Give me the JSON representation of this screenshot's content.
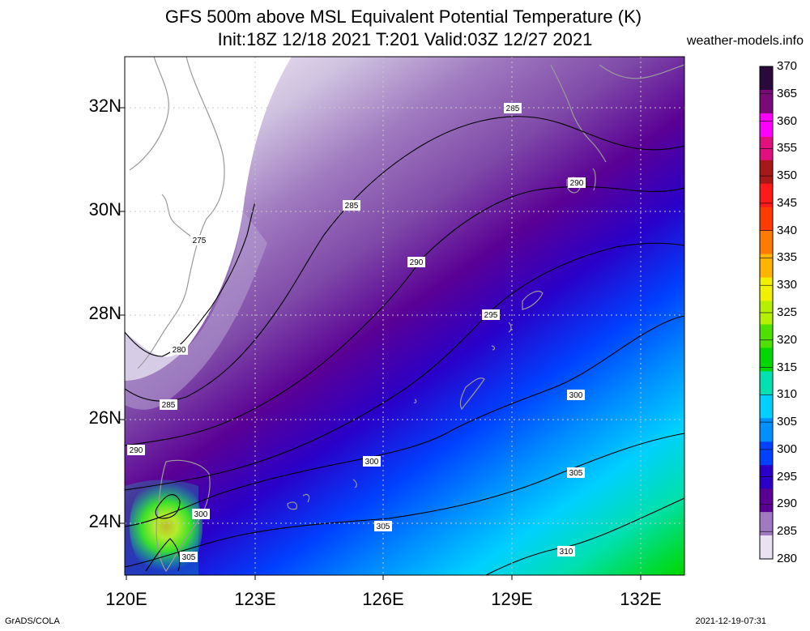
{
  "title_line1": "GFS 500m above MSL Equivalent Potential Temperature (K)",
  "title_line2": "Init:18Z 12/18 2021 T:201 Valid:03Z 12/27 2021",
  "site": "weather-models.info",
  "lat_labels": [
    "32N",
    "30N",
    "28N",
    "26N",
    "24N"
  ],
  "lon_labels": [
    "120E",
    "123E",
    "126E",
    "129E",
    "132E"
  ],
  "colorbar": {
    "ticks": [
      "370",
      "365",
      "360",
      "355",
      "350",
      "345",
      "340",
      "335",
      "330",
      "325",
      "320",
      "315",
      "310",
      "305",
      "300",
      "295",
      "290",
      "285",
      "280"
    ],
    "colors": [
      "#2a0a3a",
      "#7a0a7a",
      "#ff00ff",
      "#e0107f",
      "#a81818",
      "#ff1a1a",
      "#ff3b00",
      "#ff7a00",
      "#ffb400",
      "#f0f000",
      "#b4f000",
      "#50e000",
      "#00d800",
      "#00e0b0",
      "#00d0ff",
      "#0090ff",
      "#0040ff",
      "#2a00c8",
      "#5a0095",
      "#a07ac0",
      "#eae2f2"
    ]
  },
  "contour_labels": {
    "c275": "275",
    "c280": "280",
    "c285a": "285",
    "c285b": "285",
    "c285c": "285",
    "c290a": "290",
    "c290b": "290",
    "c290c": "290",
    "c295": "295",
    "c300a": "300",
    "c300b": "300",
    "c300c": "300",
    "c305a": "305",
    "c305b": "305",
    "c305c": "305",
    "c310": "310"
  },
  "footer_left": "GrADS/COLA",
  "footer_right": "2021-12-19-07:31"
}
